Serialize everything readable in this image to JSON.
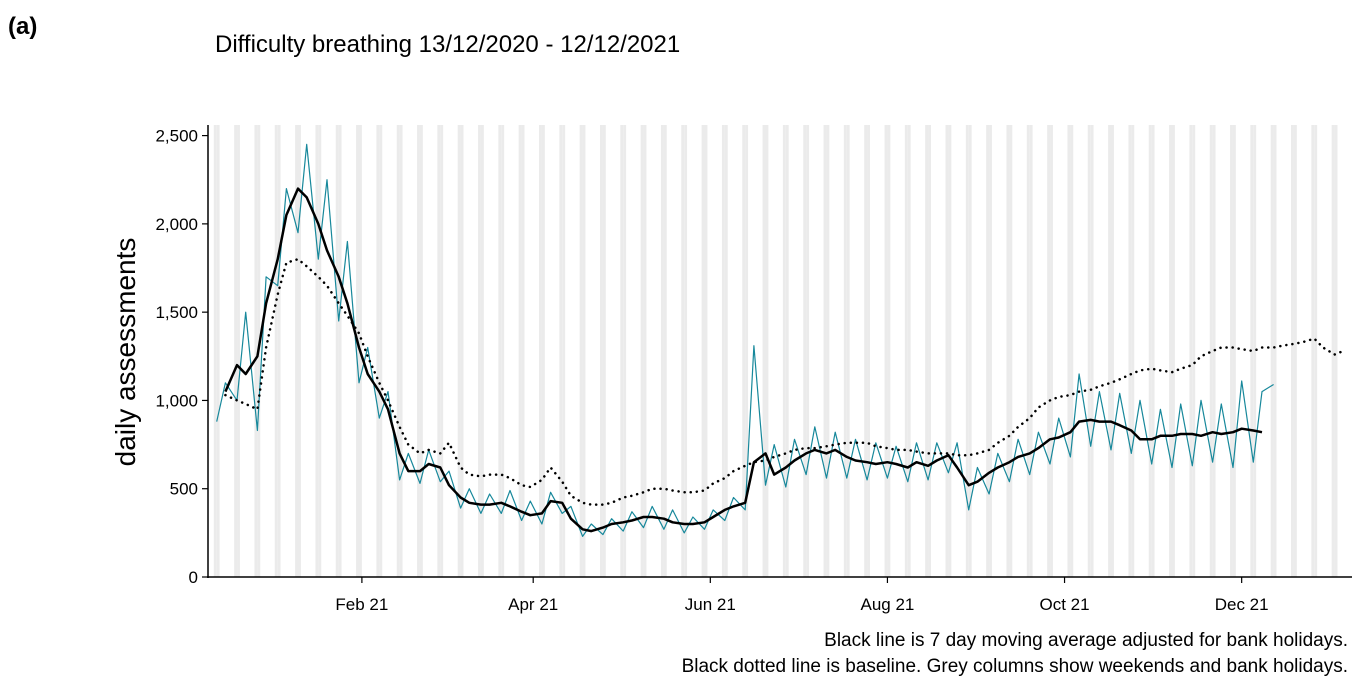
{
  "panel_label": "(a)",
  "chart_data": {
    "type": "line",
    "title": "Difficulty breathing 13/12/2020 - 12/12/2021",
    "y_label": "daily assessments",
    "annotations": [
      "Black line is 7 day moving average adjusted for bank holidays.",
      "Black dotted line is baseline. Grey columns show weekends and bank holidays."
    ],
    "xlim": [
      "2020-12-10",
      "2022-01-08"
    ],
    "xticks": [
      {
        "value": "2021-02-01",
        "label": "Feb 21"
      },
      {
        "value": "2021-04-01",
        "label": "Apr 21"
      },
      {
        "value": "2021-06-01",
        "label": "Jun 21"
      },
      {
        "value": "2021-08-01",
        "label": "Aug 21"
      },
      {
        "value": "2021-10-01",
        "label": "Oct 21"
      },
      {
        "value": "2021-12-01",
        "label": "Dec 21"
      }
    ],
    "ylim": [
      0,
      2560
    ],
    "yticks": [
      0,
      {
        "value": 500,
        "label": "500"
      },
      {
        "value": 1000,
        "label": "1,000"
      },
      {
        "value": 1500,
        "label": "1,500"
      },
      {
        "value": 2000,
        "label": "2,000"
      },
      {
        "value": 2500,
        "label": "2,500"
      }
    ],
    "weekend_columns": true,
    "x": [
      "2020-12-13",
      "2020-12-16",
      "2020-12-20",
      "2020-12-23",
      "2020-12-27",
      "2020-12-30",
      "2021-01-03",
      "2021-01-06",
      "2021-01-10",
      "2021-01-13",
      "2021-01-17",
      "2021-01-20",
      "2021-01-24",
      "2021-01-27",
      "2021-01-31",
      "2021-02-03",
      "2021-02-07",
      "2021-02-10",
      "2021-02-14",
      "2021-02-17",
      "2021-02-21",
      "2021-02-24",
      "2021-02-28",
      "2021-03-03",
      "2021-03-07",
      "2021-03-10",
      "2021-03-14",
      "2021-03-17",
      "2021-03-21",
      "2021-03-24",
      "2021-03-28",
      "2021-03-31",
      "2021-04-04",
      "2021-04-07",
      "2021-04-11",
      "2021-04-14",
      "2021-04-18",
      "2021-04-21",
      "2021-04-25",
      "2021-04-28",
      "2021-05-02",
      "2021-05-05",
      "2021-05-09",
      "2021-05-12",
      "2021-05-16",
      "2021-05-19",
      "2021-05-23",
      "2021-05-26",
      "2021-05-30",
      "2021-06-02",
      "2021-06-06",
      "2021-06-09",
      "2021-06-13",
      "2021-06-16",
      "2021-06-20",
      "2021-06-23",
      "2021-06-27",
      "2021-06-30",
      "2021-07-04",
      "2021-07-07",
      "2021-07-11",
      "2021-07-14",
      "2021-07-18",
      "2021-07-21",
      "2021-07-25",
      "2021-07-28",
      "2021-08-01",
      "2021-08-04",
      "2021-08-08",
      "2021-08-11",
      "2021-08-15",
      "2021-08-18",
      "2021-08-22",
      "2021-08-25",
      "2021-08-29",
      "2021-09-01",
      "2021-09-05",
      "2021-09-08",
      "2021-09-12",
      "2021-09-15",
      "2021-09-19",
      "2021-09-22",
      "2021-09-26",
      "2021-09-29",
      "2021-10-03",
      "2021-10-06",
      "2021-10-10",
      "2021-10-13",
      "2021-10-17",
      "2021-10-20",
      "2021-10-24",
      "2021-10-27",
      "2021-10-31",
      "2021-11-03",
      "2021-11-07",
      "2021-11-10",
      "2021-11-14",
      "2021-11-17",
      "2021-11-21",
      "2021-11-24",
      "2021-11-28",
      "2021-12-01",
      "2021-12-05",
      "2021-12-08",
      "2021-12-12",
      "2021-12-15",
      "2021-12-19",
      "2021-12-22",
      "2021-12-26",
      "2021-12-29",
      "2022-01-02",
      "2022-01-05"
    ],
    "series": [
      {
        "name": "daily",
        "color": "#17889b",
        "width": 1.2,
        "style": "solid",
        "values": [
          880,
          1100,
          1000,
          1500,
          830,
          1700,
          1650,
          2200,
          1950,
          2450,
          1800,
          2250,
          1450,
          1900,
          1100,
          1300,
          900,
          1050,
          550,
          700,
          530,
          720,
          540,
          600,
          390,
          500,
          360,
          470,
          360,
          490,
          320,
          430,
          300,
          480,
          360,
          400,
          230,
          300,
          240,
          330,
          260,
          370,
          280,
          400,
          270,
          380,
          250,
          340,
          270,
          380,
          320,
          450,
          380,
          1310,
          520,
          750,
          510,
          780,
          580,
          850,
          560,
          820,
          560,
          780,
          550,
          760,
          560,
          740,
          540,
          760,
          550,
          760,
          590,
          760,
          380,
          620,
          470,
          700,
          540,
          780,
          580,
          820,
          640,
          900,
          680,
          1150,
          740,
          1050,
          720,
          1040,
          700,
          1000,
          640,
          950,
          620,
          980,
          630,
          1000,
          650,
          980,
          620,
          1110,
          650,
          1050,
          1090,
          null,
          null,
          null,
          null,
          null,
          null,
          null
        ]
      },
      {
        "name": "7 day moving average",
        "color": "#000000",
        "width": 2.5,
        "style": "solid",
        "values": [
          null,
          1050,
          1200,
          1150,
          1250,
          1550,
          1800,
          2050,
          2200,
          2150,
          2000,
          1850,
          1700,
          1550,
          1300,
          1150,
          1050,
          950,
          700,
          600,
          600,
          640,
          620,
          520,
          450,
          420,
          410,
          410,
          420,
          400,
          370,
          350,
          360,
          430,
          420,
          330,
          270,
          260,
          280,
          300,
          310,
          320,
          340,
          340,
          330,
          310,
          300,
          300,
          310,
          340,
          380,
          400,
          420,
          650,
          700,
          580,
          620,
          660,
          700,
          720,
          700,
          720,
          680,
          660,
          650,
          640,
          650,
          640,
          620,
          650,
          630,
          660,
          690,
          620,
          520,
          540,
          590,
          620,
          650,
          680,
          700,
          730,
          780,
          790,
          820,
          880,
          890,
          880,
          880,
          860,
          830,
          780,
          780,
          800,
          800,
          810,
          810,
          800,
          820,
          810,
          820,
          840,
          830,
          820,
          null,
          null,
          null,
          null,
          null,
          null,
          null,
          null
        ]
      },
      {
        "name": "baseline",
        "color": "#000000",
        "width": 2.5,
        "style": "dotted",
        "values": [
          null,
          1030,
          1000,
          980,
          950,
          1300,
          1600,
          1780,
          1800,
          1760,
          1700,
          1650,
          1550,
          1480,
          1380,
          1250,
          1100,
          1000,
          850,
          750,
          700,
          720,
          700,
          760,
          620,
          580,
          570,
          580,
          580,
          560,
          520,
          510,
          550,
          620,
          540,
          460,
          420,
          410,
          410,
          420,
          450,
          460,
          480,
          500,
          500,
          490,
          480,
          480,
          490,
          530,
          560,
          600,
          630,
          650,
          660,
          680,
          700,
          720,
          730,
          730,
          740,
          750,
          760,
          760,
          760,
          740,
          730,
          720,
          720,
          710,
          700,
          700,
          700,
          690,
          690,
          700,
          720,
          760,
          800,
          850,
          900,
          960,
          1000,
          1020,
          1030,
          1050,
          1060,
          1080,
          1100,
          1120,
          1150,
          1170,
          1180,
          1170,
          1160,
          1180,
          1200,
          1250,
          1280,
          1300,
          1300,
          1290,
          1280,
          1300,
          1300,
          1310,
          1320,
          1330,
          1350,
          1300,
          1260,
          1280
        ]
      }
    ]
  }
}
